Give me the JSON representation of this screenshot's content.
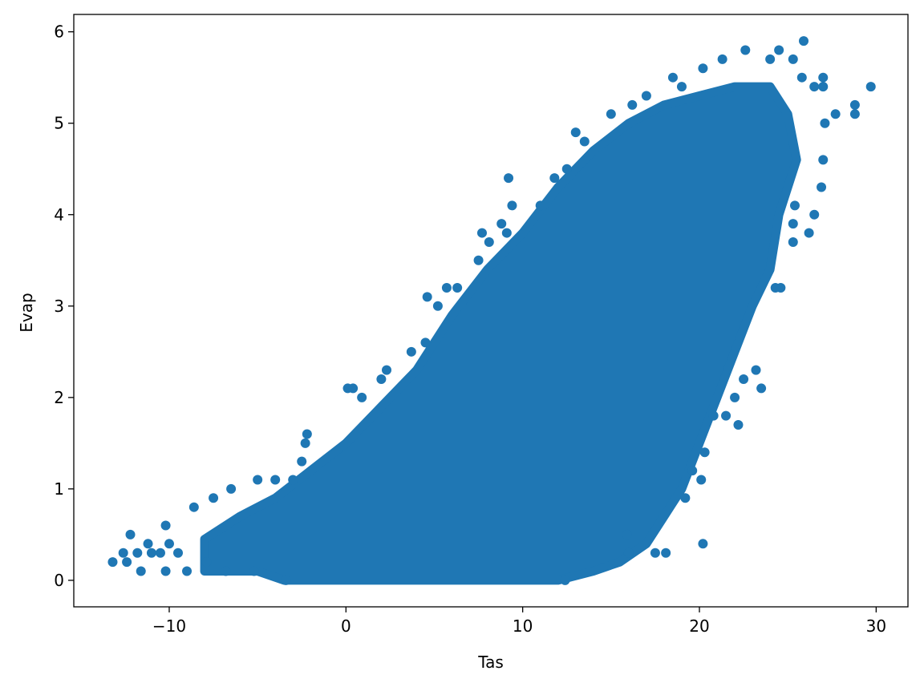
{
  "chart_data": {
    "type": "scatter",
    "title": "",
    "xlabel": "Tas",
    "ylabel": "Evap",
    "xlim": [
      -15.4,
      31.8
    ],
    "ylim": [
      -0.29,
      6.19
    ],
    "xticks": [
      -10,
      0,
      10,
      20,
      30
    ],
    "xtick_labels": [
      "−10",
      "0",
      "10",
      "20",
      "30"
    ],
    "yticks": [
      0,
      1,
      2,
      3,
      4,
      5,
      6
    ],
    "ytick_labels": [
      "0",
      "1",
      "2",
      "3",
      "4",
      "5",
      "6"
    ],
    "grid": false,
    "color": "#1f77b4",
    "dense_region": [
      [
        -8,
        0.45
      ],
      [
        -6,
        0.7
      ],
      [
        -4,
        0.9
      ],
      [
        -2,
        1.2
      ],
      [
        0,
        1.5
      ],
      [
        2,
        1.9
      ],
      [
        4,
        2.3
      ],
      [
        5,
        2.6
      ],
      [
        6,
        2.9
      ],
      [
        8,
        3.4
      ],
      [
        10,
        3.8
      ],
      [
        12,
        4.3
      ],
      [
        14,
        4.7
      ],
      [
        16,
        5.0
      ],
      [
        18,
        5.2
      ],
      [
        20,
        5.3
      ],
      [
        22,
        5.4
      ],
      [
        24,
        5.4
      ],
      [
        25,
        5.1
      ],
      [
        25.5,
        4.6
      ],
      [
        24.5,
        4.0
      ],
      [
        24,
        3.4
      ],
      [
        23,
        3.0
      ],
      [
        22,
        2.5
      ],
      [
        21,
        2.0
      ],
      [
        20,
        1.5
      ],
      [
        19,
        1.0
      ],
      [
        18,
        0.7
      ],
      [
        17,
        0.4
      ],
      [
        15.5,
        0.2
      ],
      [
        14,
        0.1
      ],
      [
        12,
        0
      ],
      [
        -3.5,
        0
      ],
      [
        -5,
        0.1
      ],
      [
        -8,
        0.1
      ]
    ],
    "points": [
      [
        -13.2,
        0.2
      ],
      [
        -12.6,
        0.3
      ],
      [
        -12.4,
        0.2
      ],
      [
        -12.2,
        0.5
      ],
      [
        -11.8,
        0.3
      ],
      [
        -11.6,
        0.1
      ],
      [
        -11.2,
        0.4
      ],
      [
        -11,
        0.3
      ],
      [
        -10.5,
        0.3
      ],
      [
        -10.2,
        0.6
      ],
      [
        -10.2,
        0.1
      ],
      [
        -10,
        0.4
      ],
      [
        -9.5,
        0.3
      ],
      [
        -9,
        0.1
      ],
      [
        -8.6,
        0.8
      ],
      [
        -7.5,
        0.9
      ],
      [
        -6.5,
        1.0
      ],
      [
        -5,
        1.1
      ],
      [
        -4,
        1.1
      ],
      [
        -3,
        1.1
      ],
      [
        -2.2,
        1.6
      ],
      [
        -2.3,
        1.5
      ],
      [
        -2.5,
        1.3
      ],
      [
        0.1,
        2.1
      ],
      [
        0.4,
        2.1
      ],
      [
        0.9,
        2.0
      ],
      [
        2,
        2.2
      ],
      [
        2.3,
        2.3
      ],
      [
        3.7,
        2.5
      ],
      [
        4.5,
        2.6
      ],
      [
        4.6,
        3.1
      ],
      [
        5.2,
        3.0
      ],
      [
        5.7,
        3.2
      ],
      [
        6.3,
        3.2
      ],
      [
        7.5,
        3.5
      ],
      [
        7.7,
        3.8
      ],
      [
        8.1,
        3.7
      ],
      [
        8.8,
        3.9
      ],
      [
        9.2,
        4.4
      ],
      [
        9.4,
        4.1
      ],
      [
        9.1,
        3.8
      ],
      [
        11,
        4.1
      ],
      [
        11.8,
        4.4
      ],
      [
        12.5,
        4.5
      ],
      [
        13,
        4.9
      ],
      [
        13.5,
        4.8
      ],
      [
        15,
        5.1
      ],
      [
        16.2,
        5.2
      ],
      [
        17,
        5.3
      ],
      [
        18.5,
        5.5
      ],
      [
        19,
        5.4
      ],
      [
        20.2,
        5.6
      ],
      [
        21.3,
        5.7
      ],
      [
        22.6,
        5.8
      ],
      [
        24,
        5.7
      ],
      [
        24.5,
        5.8
      ],
      [
        25.9,
        5.9
      ],
      [
        25.3,
        5.7
      ],
      [
        25.8,
        5.5
      ],
      [
        26.5,
        5.4
      ],
      [
        27,
        5.5
      ],
      [
        27,
        5.4
      ],
      [
        27.7,
        5.1
      ],
      [
        28.8,
        5.2
      ],
      [
        28.8,
        5.1
      ],
      [
        29.7,
        5.4
      ],
      [
        27.1,
        5.0
      ],
      [
        27,
        4.6
      ],
      [
        26.9,
        4.3
      ],
      [
        26.5,
        4.0
      ],
      [
        26.2,
        3.8
      ],
      [
        25.4,
        4.1
      ],
      [
        25.3,
        3.7
      ],
      [
        25.3,
        3.9
      ],
      [
        24.6,
        3.2
      ],
      [
        24.3,
        3.2
      ],
      [
        23.5,
        2.1
      ],
      [
        23.2,
        2.3
      ],
      [
        22.5,
        2.2
      ],
      [
        22,
        2.0
      ],
      [
        22.2,
        1.7
      ],
      [
        21.5,
        1.8
      ],
      [
        20.8,
        1.8
      ],
      [
        20.3,
        1.4
      ],
      [
        20.1,
        1.1
      ],
      [
        20.2,
        0.4
      ],
      [
        19.6,
        1.2
      ],
      [
        19.2,
        0.9
      ],
      [
        18.1,
        0.3
      ],
      [
        17.5,
        0.3
      ],
      [
        15.9,
        0.5
      ],
      [
        16,
        0.3
      ],
      [
        12.4,
        0.0
      ],
      [
        -3.4,
        0.0
      ],
      [
        -7.9,
        0.2
      ],
      [
        -6.8,
        0.1
      ],
      [
        -5.2,
        0.1
      ]
    ]
  }
}
